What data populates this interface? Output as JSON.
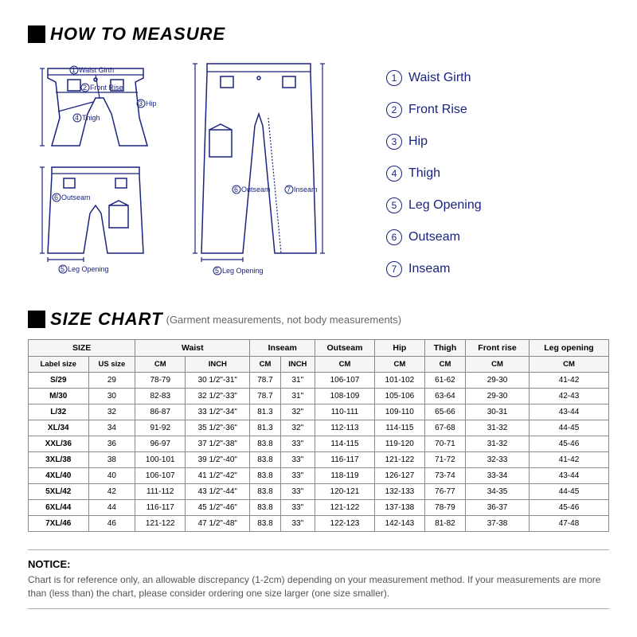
{
  "colors": {
    "accent": "#1a237e",
    "border": "#888888",
    "text": "#000000",
    "muted": "#666666"
  },
  "titles": {
    "howToMeasure": "HOW TO MEASURE",
    "sizeChart": "SIZE CHART",
    "sizeChartSub": "(Garment measurements, not body measurements)"
  },
  "legend": [
    {
      "n": "1",
      "label": "Waist Girth"
    },
    {
      "n": "2",
      "label": "Front Rise"
    },
    {
      "n": "3",
      "label": "Hip"
    },
    {
      "n": "4",
      "label": "Thigh"
    },
    {
      "n": "5",
      "label": "Leg Opening"
    },
    {
      "n": "6",
      "label": "Outseam"
    },
    {
      "n": "7",
      "label": "Inseam"
    }
  ],
  "diagramLabels": {
    "waistGirth": "Waist Girth",
    "frontRise": "Front Rise",
    "hip": "Hip",
    "thigh": "Thigh",
    "outseam": "Outseam",
    "inseam": "Inseam",
    "legOpening": "Leg Opening"
  },
  "table": {
    "groupHeaders": [
      "SIZE",
      "Waist",
      "Inseam",
      "Outseam",
      "Hip",
      "Thigh",
      "Front rise",
      "Leg opening"
    ],
    "subHeaders": [
      "Label size",
      "US size",
      "CM",
      "INCH",
      "CM",
      "INCH",
      "CM",
      "CM",
      "CM",
      "CM",
      "CM"
    ],
    "rows": [
      [
        "S/29",
        "29",
        "78-79",
        "30 1/2\"-31\"",
        "78.7",
        "31\"",
        "106-107",
        "101-102",
        "61-62",
        "29-30",
        "41-42"
      ],
      [
        "M/30",
        "30",
        "82-83",
        "32 1/2\"-33\"",
        "78.7",
        "31\"",
        "108-109",
        "105-106",
        "63-64",
        "29-30",
        "42-43"
      ],
      [
        "L/32",
        "32",
        "86-87",
        "33 1/2\"-34\"",
        "81.3",
        "32\"",
        "110-111",
        "109-110",
        "65-66",
        "30-31",
        "43-44"
      ],
      [
        "XL/34",
        "34",
        "91-92",
        "35 1/2\"-36\"",
        "81.3",
        "32\"",
        "112-113",
        "114-115",
        "67-68",
        "31-32",
        "44-45"
      ],
      [
        "XXL/36",
        "36",
        "96-97",
        "37 1/2\"-38\"",
        "83.8",
        "33\"",
        "114-115",
        "119-120",
        "70-71",
        "31-32",
        "45-46"
      ],
      [
        "3XL/38",
        "38",
        "100-101",
        "39 1/2\"-40\"",
        "83.8",
        "33\"",
        "116-117",
        "121-122",
        "71-72",
        "32-33",
        "41-42"
      ],
      [
        "4XL/40",
        "40",
        "106-107",
        "41 1/2\"-42\"",
        "83.8",
        "33\"",
        "118-119",
        "126-127",
        "73-74",
        "33-34",
        "43-44"
      ],
      [
        "5XL/42",
        "42",
        "111-112",
        "43 1/2\"-44\"",
        "83.8",
        "33\"",
        "120-121",
        "132-133",
        "76-77",
        "34-35",
        "44-45"
      ],
      [
        "6XL/44",
        "44",
        "116-117",
        "45 1/2\"-46\"",
        "83.8",
        "33\"",
        "121-122",
        "137-138",
        "78-79",
        "36-37",
        "45-46"
      ],
      [
        "7XL/46",
        "46",
        "121-122",
        "47 1/2\"-48\"",
        "83.8",
        "33\"",
        "122-123",
        "142-143",
        "81-82",
        "37-38",
        "47-48"
      ]
    ]
  },
  "notice": {
    "title": "NOTICE:",
    "body": "Chart is for reference only, an allowable discrepancy (1-2cm) depending on your measurement method. If your measurements are more than (less than) the chart, please consider ordering one size larger (one size smaller)."
  }
}
